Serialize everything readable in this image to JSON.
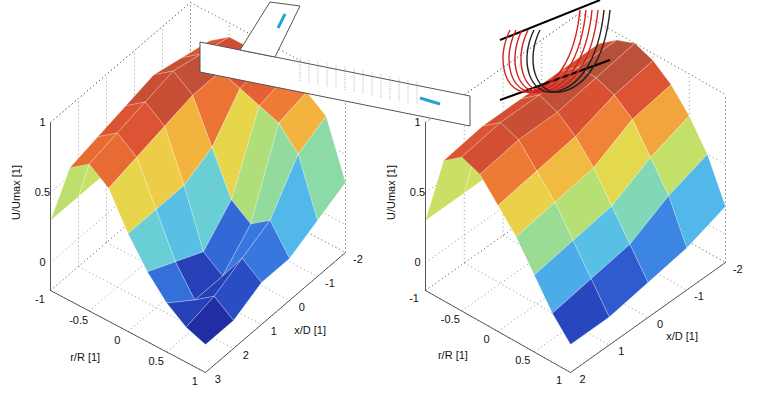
{
  "chart_data": [
    {
      "type": "surface",
      "xlabel": "r/R [1]",
      "ylabel": "x/D [1]",
      "zlabel": "U/Umax [1]",
      "x": [
        -1,
        -0.75,
        -0.5,
        -0.25,
        0,
        0.25,
        0.5,
        0.75,
        1
      ],
      "y": [
        -2,
        -1,
        0,
        1,
        2,
        3
      ],
      "z": [
        [
          0.3,
          0.8,
          0.9,
          0.9,
          0.88,
          0.85,
          0.8,
          0.7,
          0.3
        ],
        [
          0.3,
          0.85,
          0.95,
          0.9,
          0.85,
          0.8,
          0.75,
          0.6,
          0.2
        ],
        [
          0.3,
          0.9,
          1.0,
          0.9,
          0.6,
          0.3,
          0.2,
          0.3,
          0.1
        ],
        [
          0.3,
          0.85,
          0.95,
          0.85,
          0.5,
          0.1,
          0.0,
          0.2,
          0.1
        ],
        [
          0.3,
          0.8,
          0.9,
          0.8,
          0.5,
          0.2,
          0.0,
          0.1,
          0.0
        ],
        [
          0.3,
          0.75,
          0.85,
          0.75,
          0.5,
          0.3,
          0.15,
          0.05,
          0.0
        ]
      ],
      "xlim": [
        -1,
        1
      ],
      "ylim": [
        -2,
        3
      ],
      "zlim": [
        -0.2,
        1
      ],
      "xticks": [
        -1,
        -0.5,
        0,
        0.5,
        1
      ],
      "yticks": [
        -2,
        -1,
        0,
        1,
        2,
        3
      ],
      "zticks": [
        0,
        0.5,
        1
      ]
    },
    {
      "type": "surface",
      "xlabel": "r/R [1]",
      "ylabel": "x/D [1]",
      "zlabel": "U/Umax [1]",
      "x": [
        -1,
        -0.75,
        -0.5,
        -0.25,
        0,
        0.25,
        0.5,
        0.75,
        1
      ],
      "y": [
        -2,
        -1,
        0,
        1,
        2
      ],
      "z": [
        [
          0.3,
          0.85,
          0.95,
          1.0,
          0.95,
          0.85,
          0.7,
          0.5,
          0.2
        ],
        [
          0.3,
          0.85,
          0.95,
          0.95,
          0.9,
          0.8,
          0.6,
          0.4,
          0.1
        ],
        [
          0.3,
          0.85,
          0.95,
          0.9,
          0.8,
          0.65,
          0.45,
          0.25,
          0.05
        ],
        [
          0.3,
          0.85,
          0.95,
          0.9,
          0.75,
          0.6,
          0.4,
          0.2,
          0.0
        ],
        [
          0.3,
          0.8,
          0.9,
          0.85,
          0.7,
          0.55,
          0.35,
          0.15,
          0.0
        ]
      ],
      "xlim": [
        -1,
        1
      ],
      "ylim": [
        -2,
        2
      ],
      "zlim": [
        -0.2,
        1
      ],
      "xticks": [
        -1,
        -0.5,
        0,
        0.5,
        1
      ],
      "yticks": [
        -2,
        -1,
        0,
        1,
        2
      ],
      "zticks": [
        0,
        0.5,
        1
      ]
    }
  ]
}
